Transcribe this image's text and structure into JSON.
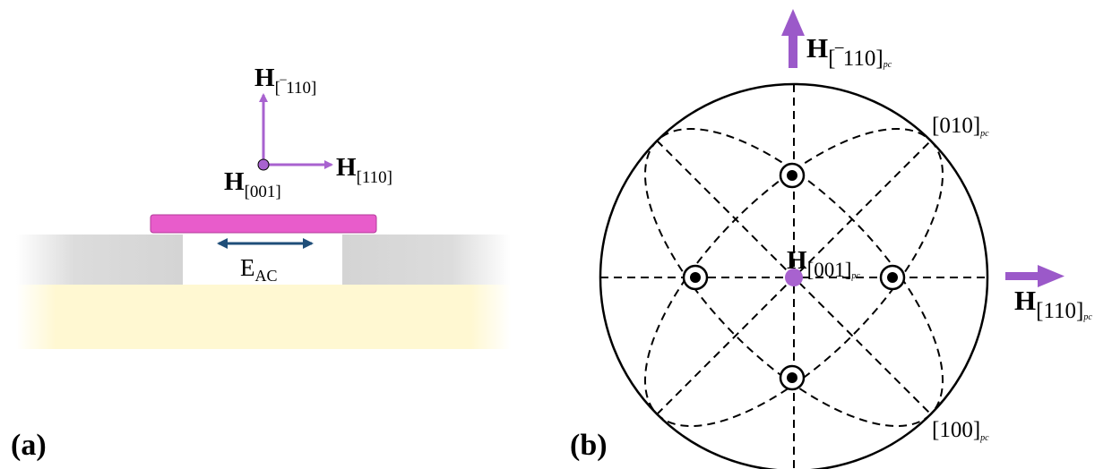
{
  "panel_a": {
    "label": "(a)",
    "h_top": {
      "main": "H",
      "sub": "[‾110]"
    },
    "h_right": {
      "main": "H",
      "sub": "[110]"
    },
    "h_origin": {
      "main": "H",
      "sub": "[001]"
    },
    "e_field": {
      "main": "E",
      "sub": "AC"
    },
    "colors": {
      "arrow": "#a862cf",
      "bar": "#e85ccb",
      "substrate": "#fff8d2",
      "support": "#d9d9d9",
      "field_arrow": "#1f4e79"
    }
  },
  "panel_b": {
    "label": "(b)",
    "h_top": {
      "main": "H",
      "sub": "[‾110]",
      "pc": "pc"
    },
    "h_right": {
      "main": "H",
      "sub": "[110]",
      "pc": "pc"
    },
    "h_center": {
      "main": "H",
      "sub": "[001]",
      "pc": "pc"
    },
    "dir_010": {
      "main": "[010]",
      "pc": "pc"
    },
    "dir_100": {
      "main": "[100]",
      "pc": "pc"
    },
    "colors": {
      "arrow": "#9b59c9",
      "center_dot": "#a862cf"
    }
  }
}
